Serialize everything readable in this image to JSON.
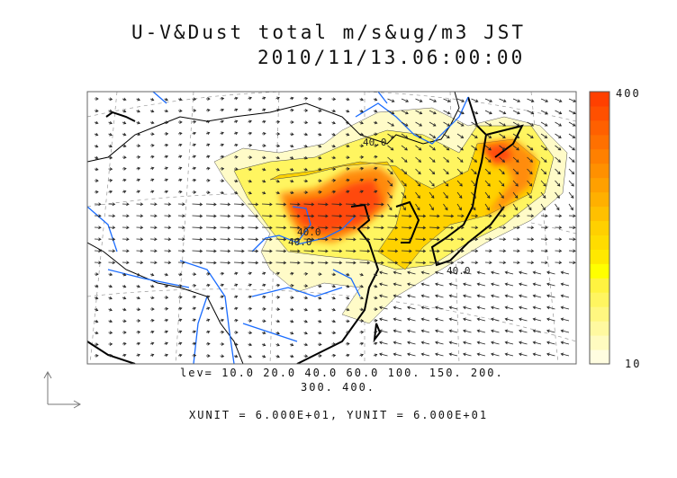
{
  "title": {
    "line1": "U-V&Dust total m/s&ug/m3 JST",
    "line2": "2010/11/13.06:00:00"
  },
  "colorbar": {
    "max_label": "400",
    "min_label": "10",
    "levels": [
      10,
      20,
      40,
      60,
      100,
      150,
      200,
      300,
      400
    ],
    "colors": [
      "#fffde0",
      "#fffbc0",
      "#fff9a0",
      "#fff780",
      "#fff560",
      "#fff340",
      "#ffff00",
      "#ffe800",
      "#ffdc00",
      "#ffd000",
      "#ffc000",
      "#ffb000",
      "#ffa000",
      "#ff9000",
      "#ff8000",
      "#ff7000",
      "#ff6000",
      "#ff5000",
      "#ff4000"
    ]
  },
  "contour_labels": [
    "40.0",
    "40.0",
    "40.0",
    "40.0"
  ],
  "legend": {
    "levels_line1": "lev= 10.0 20.0 40.0 60.0 100. 150. 200.",
    "levels_line2": "300. 400.",
    "units": "XUNIT = 6.000E+01, YUNIT = 6.000E+01"
  },
  "colors": {
    "coastline": "#000000",
    "river": "#1a6cff",
    "dust_low": "#fff8b0",
    "dust_high": "#ff4a10"
  }
}
